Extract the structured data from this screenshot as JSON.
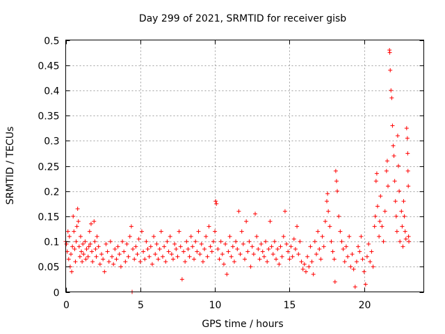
{
  "chart_data": {
    "type": "scatter",
    "title": "Day 299 of 2021, SRMTID for receiver gisb",
    "xlabel": "GPS time / hours",
    "ylabel": "SRMTID / TECUs",
    "xlim": [
      0,
      24
    ],
    "ylim": [
      0,
      0.5
    ],
    "xticks": [
      0,
      5,
      10,
      15,
      20
    ],
    "xtick_labels": [
      "0",
      "5",
      "10",
      "15",
      "20"
    ],
    "yticks": [
      0,
      0.05,
      0.1,
      0.15,
      0.2,
      0.25,
      0.3,
      0.35,
      0.4,
      0.45,
      0.5
    ],
    "ytick_labels": [
      "0",
      "0.05",
      "0.1",
      "0.15",
      "0.2",
      "0.25",
      "0.3",
      "0.35",
      "0.4",
      "0.45",
      "0.5"
    ],
    "grid": true,
    "marker": "+",
    "color": "#ff0000",
    "series": [
      {
        "name": "SRMTID",
        "points": [
          [
            0.0,
            0.1
          ],
          [
            0.05,
            0.095
          ],
          [
            0.1,
            0.08
          ],
          [
            0.15,
            0.12
          ],
          [
            0.2,
            0.065
          ],
          [
            0.25,
            0.11
          ],
          [
            0.3,
            0.05
          ],
          [
            0.35,
            0.075
          ],
          [
            0.4,
            0.04
          ],
          [
            0.45,
            0.09
          ],
          [
            0.5,
            0.15
          ],
          [
            0.55,
            0.12
          ],
          [
            0.6,
            0.085
          ],
          [
            0.65,
            0.06
          ],
          [
            0.7,
            0.1
          ],
          [
            0.75,
            0.13
          ],
          [
            0.8,
            0.165
          ],
          [
            0.85,
            0.14
          ],
          [
            0.9,
            0.09
          ],
          [
            0.95,
            0.07
          ],
          [
            1.0,
            0.11
          ],
          [
            1.05,
            0.08
          ],
          [
            1.1,
            0.06
          ],
          [
            1.15,
            0.095
          ],
          [
            1.2,
            0.075
          ],
          [
            1.3,
            0.1
          ],
          [
            1.35,
            0.065
          ],
          [
            1.4,
            0.085
          ],
          [
            1.5,
            0.07
          ],
          [
            1.55,
            0.09
          ],
          [
            1.6,
            0.12
          ],
          [
            1.65,
            0.095
          ],
          [
            1.7,
            0.135
          ],
          [
            1.75,
            0.08
          ],
          [
            1.8,
            0.06
          ],
          [
            1.9,
            0.14
          ],
          [
            1.95,
            0.1
          ],
          [
            2.0,
            0.085
          ],
          [
            2.05,
            0.07
          ],
          [
            2.1,
            0.11
          ],
          [
            2.2,
            0.09
          ],
          [
            2.3,
            0.055
          ],
          [
            2.4,
            0.075
          ],
          [
            2.5,
            0.065
          ],
          [
            2.6,
            0.04
          ],
          [
            2.7,
            0.095
          ],
          [
            2.8,
            0.08
          ],
          [
            2.9,
            0.06
          ],
          [
            3.0,
            0.1
          ],
          [
            3.1,
            0.07
          ],
          [
            3.2,
            0.055
          ],
          [
            3.3,
            0.085
          ],
          [
            3.4,
            0.065
          ],
          [
            3.5,
            0.09
          ],
          [
            3.6,
            0.075
          ],
          [
            3.7,
            0.05
          ],
          [
            3.8,
            0.1
          ],
          [
            3.9,
            0.08
          ],
          [
            4.0,
            0.06
          ],
          [
            4.1,
            0.095
          ],
          [
            4.2,
            0.07
          ],
          [
            4.3,
            0.11
          ],
          [
            4.4,
            0.13
          ],
          [
            4.45,
            0.0
          ],
          [
            4.5,
            0.085
          ],
          [
            4.6,
            0.065
          ],
          [
            4.7,
            0.09
          ],
          [
            4.8,
            0.075
          ],
          [
            4.9,
            0.105
          ],
          [
            5.0,
            0.06
          ],
          [
            5.1,
            0.12
          ],
          [
            5.2,
            0.08
          ],
          [
            5.3,
            0.065
          ],
          [
            5.4,
            0.1
          ],
          [
            5.5,
            0.085
          ],
          [
            5.6,
            0.07
          ],
          [
            5.7,
            0.09
          ],
          [
            5.8,
            0.055
          ],
          [
            5.9,
            0.11
          ],
          [
            6.0,
            0.075
          ],
          [
            6.1,
            0.095
          ],
          [
            6.2,
            0.065
          ],
          [
            6.3,
            0.085
          ],
          [
            6.4,
            0.12
          ],
          [
            6.5,
            0.07
          ],
          [
            6.6,
            0.09
          ],
          [
            6.7,
            0.06
          ],
          [
            6.8,
            0.1
          ],
          [
            6.9,
            0.08
          ],
          [
            7.0,
            0.11
          ],
          [
            7.1,
            0.075
          ],
          [
            7.2,
            0.065
          ],
          [
            7.3,
            0.095
          ],
          [
            7.4,
            0.085
          ],
          [
            7.5,
            0.07
          ],
          [
            7.6,
            0.12
          ],
          [
            7.7,
            0.09
          ],
          [
            7.8,
            0.025
          ],
          [
            7.9,
            0.08
          ],
          [
            8.0,
            0.06
          ],
          [
            8.1,
            0.1
          ],
          [
            8.2,
            0.085
          ],
          [
            8.3,
            0.07
          ],
          [
            8.4,
            0.11
          ],
          [
            8.5,
            0.09
          ],
          [
            8.6,
            0.065
          ],
          [
            8.7,
            0.1
          ],
          [
            8.8,
            0.08
          ],
          [
            8.9,
            0.12
          ],
          [
            9.0,
            0.075
          ],
          [
            9.1,
            0.095
          ],
          [
            9.2,
            0.06
          ],
          [
            9.3,
            0.085
          ],
          [
            9.4,
            0.11
          ],
          [
            9.5,
            0.07
          ],
          [
            9.6,
            0.13
          ],
          [
            9.7,
            0.09
          ],
          [
            9.8,
            0.08
          ],
          [
            9.9,
            0.1
          ],
          [
            10.0,
            0.12
          ],
          [
            10.05,
            0.18
          ],
          [
            10.1,
            0.175
          ],
          [
            10.2,
            0.085
          ],
          [
            10.3,
            0.065
          ],
          [
            10.4,
            0.1
          ],
          [
            10.5,
            0.075
          ],
          [
            10.6,
            0.055
          ],
          [
            10.7,
            0.095
          ],
          [
            10.8,
            0.035
          ],
          [
            10.9,
            0.08
          ],
          [
            11.0,
            0.11
          ],
          [
            11.1,
            0.07
          ],
          [
            11.2,
            0.09
          ],
          [
            11.3,
            0.06
          ],
          [
            11.4,
            0.1
          ],
          [
            11.5,
            0.085
          ],
          [
            11.6,
            0.16
          ],
          [
            11.7,
            0.075
          ],
          [
            11.8,
            0.12
          ],
          [
            11.9,
            0.095
          ],
          [
            12.0,
            0.065
          ],
          [
            12.1,
            0.14
          ],
          [
            12.2,
            0.08
          ],
          [
            12.3,
            0.1
          ],
          [
            12.4,
            0.05
          ],
          [
            12.5,
            0.09
          ],
          [
            12.6,
            0.075
          ],
          [
            12.7,
            0.155
          ],
          [
            12.8,
            0.11
          ],
          [
            12.9,
            0.085
          ],
          [
            13.0,
            0.065
          ],
          [
            13.1,
            0.095
          ],
          [
            13.2,
            0.08
          ],
          [
            13.3,
            0.07
          ],
          [
            13.4,
            0.1
          ],
          [
            13.5,
            0.06
          ],
          [
            13.6,
            0.085
          ],
          [
            13.7,
            0.14
          ],
          [
            13.8,
            0.09
          ],
          [
            13.9,
            0.075
          ],
          [
            14.0,
            0.1
          ],
          [
            14.1,
            0.065
          ],
          [
            14.2,
            0.085
          ],
          [
            14.3,
            0.055
          ],
          [
            14.4,
            0.09
          ],
          [
            14.5,
            0.07
          ],
          [
            14.6,
            0.11
          ],
          [
            14.7,
            0.16
          ],
          [
            14.8,
            0.095
          ],
          [
            14.9,
            0.08
          ],
          [
            15.0,
            0.065
          ],
          [
            15.1,
            0.09
          ],
          [
            15.2,
            0.07
          ],
          [
            15.3,
            0.105
          ],
          [
            15.4,
            0.085
          ],
          [
            15.5,
            0.13
          ],
          [
            15.6,
            0.075
          ],
          [
            15.7,
            0.1
          ],
          [
            15.8,
            0.06
          ],
          [
            15.9,
            0.045
          ],
          [
            16.0,
            0.055
          ],
          [
            16.1,
            0.04
          ],
          [
            16.2,
            0.07
          ],
          [
            16.3,
            0.05
          ],
          [
            16.4,
            0.09
          ],
          [
            16.5,
            0.06
          ],
          [
            16.6,
            0.035
          ],
          [
            16.7,
            0.1
          ],
          [
            16.8,
            0.075
          ],
          [
            16.9,
            0.12
          ],
          [
            17.0,
            0.085
          ],
          [
            17.1,
            0.065
          ],
          [
            17.2,
            0.11
          ],
          [
            17.3,
            0.09
          ],
          [
            17.4,
            0.14
          ],
          [
            17.5,
            0.18
          ],
          [
            17.55,
            0.195
          ],
          [
            17.6,
            0.16
          ],
          [
            17.7,
            0.13
          ],
          [
            17.8,
            0.1
          ],
          [
            17.9,
            0.08
          ],
          [
            18.0,
            0.065
          ],
          [
            18.05,
            0.02
          ],
          [
            18.1,
            0.24
          ],
          [
            18.15,
            0.22
          ],
          [
            18.2,
            0.2
          ],
          [
            18.3,
            0.15
          ],
          [
            18.4,
            0.12
          ],
          [
            18.5,
            0.1
          ],
          [
            18.6,
            0.085
          ],
          [
            18.7,
            0.06
          ],
          [
            18.8,
            0.09
          ],
          [
            18.9,
            0.07
          ],
          [
            19.0,
            0.11
          ],
          [
            19.1,
            0.05
          ],
          [
            19.2,
            0.075
          ],
          [
            19.3,
            0.045
          ],
          [
            19.4,
            0.01
          ],
          [
            19.5,
            0.06
          ],
          [
            19.6,
            0.09
          ],
          [
            19.7,
            0.08
          ],
          [
            19.8,
            0.11
          ],
          [
            19.9,
            0.065
          ],
          [
            20.0,
            0.04
          ],
          [
            20.1,
            0.015
          ],
          [
            20.2,
            0.07
          ],
          [
            20.3,
            0.095
          ],
          [
            20.4,
            0.06
          ],
          [
            20.5,
            0.08
          ],
          [
            20.6,
            0.05
          ],
          [
            20.7,
            0.13
          ],
          [
            20.75,
            0.15
          ],
          [
            20.8,
            0.22
          ],
          [
            20.85,
            0.235
          ],
          [
            20.9,
            0.17
          ],
          [
            21.0,
            0.11
          ],
          [
            21.05,
            0.14
          ],
          [
            21.1,
            0.19
          ],
          [
            21.2,
            0.13
          ],
          [
            21.3,
            0.1
          ],
          [
            21.4,
            0.16
          ],
          [
            21.5,
            0.24
          ],
          [
            21.55,
            0.26
          ],
          [
            21.6,
            0.21
          ],
          [
            21.7,
            0.48
          ],
          [
            21.72,
            0.475
          ],
          [
            21.75,
            0.44
          ],
          [
            21.8,
            0.4
          ],
          [
            21.85,
            0.385
          ],
          [
            21.9,
            0.33
          ],
          [
            21.95,
            0.29
          ],
          [
            22.0,
            0.27
          ],
          [
            22.05,
            0.22
          ],
          [
            22.1,
            0.18
          ],
          [
            22.15,
            0.15
          ],
          [
            22.2,
            0.12
          ],
          [
            22.25,
            0.31
          ],
          [
            22.3,
            0.25
          ],
          [
            22.35,
            0.2
          ],
          [
            22.4,
            0.1
          ],
          [
            22.5,
            0.16
          ],
          [
            22.55,
            0.13
          ],
          [
            22.6,
            0.09
          ],
          [
            22.65,
            0.18
          ],
          [
            22.7,
            0.15
          ],
          [
            22.75,
            0.12
          ],
          [
            22.8,
            0.105
          ],
          [
            22.85,
            0.325
          ],
          [
            22.9,
            0.305
          ],
          [
            22.92,
            0.275
          ],
          [
            22.94,
            0.24
          ],
          [
            22.96,
            0.21
          ],
          [
            22.98,
            0.11
          ],
          [
            23.0,
            0.1
          ]
        ]
      }
    ]
  }
}
